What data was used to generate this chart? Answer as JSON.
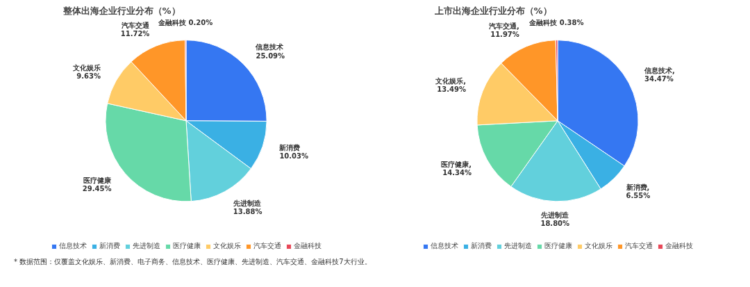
{
  "chart_data": [
    {
      "type": "pie",
      "title": "整体出海企业行业分布（%）",
      "categories": [
        "信息技术",
        "新消费",
        "先进制造",
        "医疗健康",
        "文化娱乐",
        "汽车交通",
        "金融科技"
      ],
      "values": [
        25.09,
        10.03,
        13.88,
        29.45,
        9.63,
        11.72,
        0.2
      ],
      "value_labels": [
        "信息技术\n25.09%",
        "新消费\n10.03%",
        "先进制造\n13.88%",
        "医疗健康\n29.45%",
        "文化娱乐\n9.63%",
        "汽车交通\n11.72%",
        "金融科技 0.20%"
      ],
      "colors": [
        "#3577f2",
        "#3ab0e4",
        "#62d0dc",
        "#66d9a8",
        "#ffcb66",
        "#ff9628",
        "#e84858"
      ],
      "legend": "bottom",
      "annotations": [
        "* 数据范围：仅覆盖文化娱乐、新消费、电子商务、信息技术、医疗健康、先进制造、汽车交通、金融科技7大行业。"
      ]
    },
    {
      "type": "pie",
      "title": "上市出海企业行业分布（%）",
      "categories": [
        "信息技术",
        "新消费",
        "先进制造",
        "医疗健康",
        "文化娱乐",
        "汽车交通",
        "金融科技"
      ],
      "values": [
        34.47,
        6.55,
        18.8,
        14.34,
        13.49,
        11.97,
        0.38
      ],
      "value_labels": [
        "信息技术,\n34.47%",
        "新消费,\n6.55%",
        "先进制造\n18.80%",
        "医疗健康,\n14.34%",
        "文化娱乐,\n13.49%",
        "汽车交通,\n11.97%",
        "金融科技 0.38%"
      ],
      "colors": [
        "#3577f2",
        "#3ab0e4",
        "#62d0dc",
        "#66d9a8",
        "#ffcb66",
        "#ff9628",
        "#e84858"
      ],
      "legend": "bottom"
    }
  ]
}
